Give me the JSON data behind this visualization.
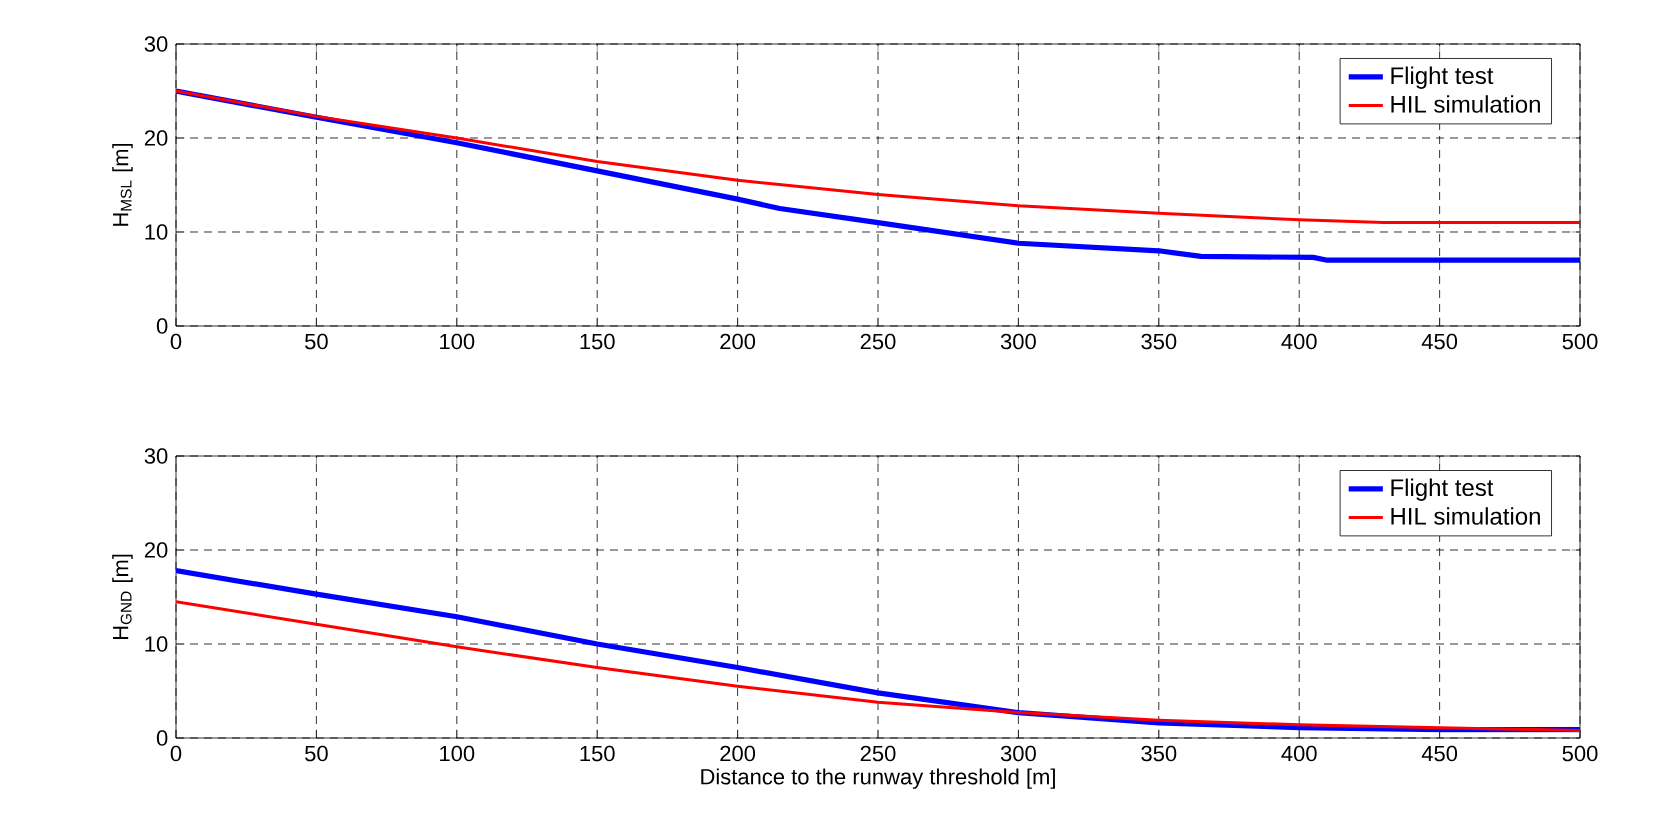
{
  "chart_data": [
    {
      "type": "line",
      "ylabel": "H$_{MSL}$ [m]",
      "xlim": [
        0,
        500
      ],
      "ylim": [
        0,
        30
      ],
      "xticks": [
        0,
        50,
        100,
        150,
        200,
        250,
        300,
        350,
        400,
        450,
        500
      ],
      "yticks": [
        0,
        10,
        20,
        30
      ],
      "grid": true,
      "legend": "top right",
      "series": [
        {
          "name": "Flight test",
          "color": "#0000ff",
          "x": [
            0,
            50,
            100,
            150,
            200,
            215,
            250,
            300,
            350,
            365,
            405,
            410,
            500
          ],
          "values": [
            25,
            22.2,
            19.5,
            16.5,
            13.5,
            12.5,
            11,
            8.8,
            8,
            7.4,
            7.3,
            7,
            7
          ]
        },
        {
          "name": "HIL simulation",
          "color": "#ff0000",
          "x": [
            0,
            50,
            100,
            150,
            200,
            250,
            300,
            350,
            400,
            430,
            500
          ],
          "values": [
            25,
            22.3,
            20,
            17.5,
            15.5,
            14,
            12.8,
            12,
            11.3,
            11,
            11
          ]
        }
      ]
    },
    {
      "type": "line",
      "ylabel": "H$_{GND}$ [m]",
      "xlabel": "Distance to the runway threshold [m]",
      "xlim": [
        0,
        500
      ],
      "ylim": [
        0,
        30
      ],
      "xticks": [
        0,
        50,
        100,
        150,
        200,
        250,
        300,
        350,
        400,
        450,
        500
      ],
      "yticks": [
        0,
        10,
        20,
        30
      ],
      "grid": true,
      "legend": "top right",
      "series": [
        {
          "name": "Flight test",
          "color": "#0000ff",
          "x": [
            0,
            50,
            100,
            150,
            200,
            250,
            300,
            350,
            400,
            450,
            500
          ],
          "values": [
            17.8,
            15.3,
            12.9,
            10,
            7.5,
            4.8,
            2.7,
            1.6,
            1.1,
            0.9,
            0.9
          ]
        },
        {
          "name": "HIL simulation",
          "color": "#ff0000",
          "x": [
            0,
            50,
            100,
            150,
            200,
            250,
            300,
            350,
            400,
            450,
            500
          ],
          "values": [
            14.5,
            12.1,
            9.7,
            7.5,
            5.5,
            3.8,
            2.7,
            1.9,
            1.4,
            1.1,
            0.8
          ]
        }
      ]
    }
  ]
}
